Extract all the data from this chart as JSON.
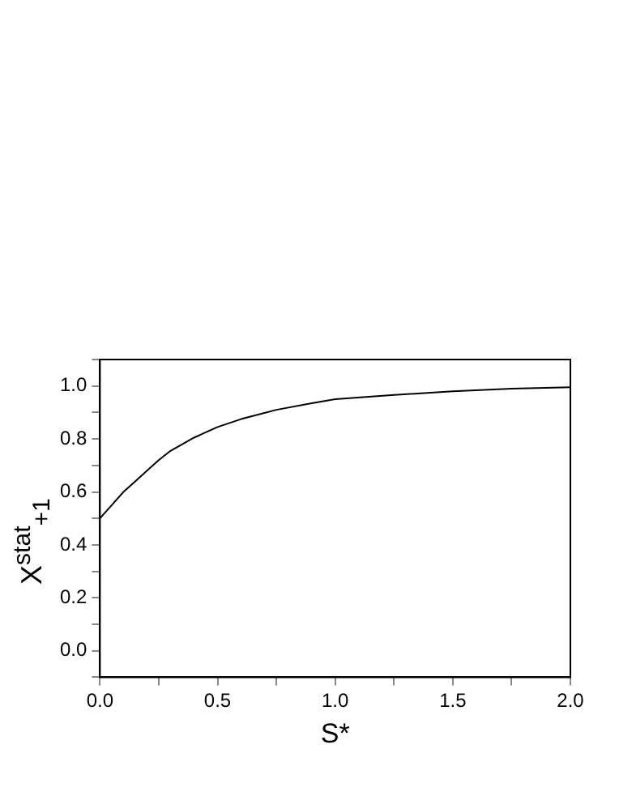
{
  "chart_data": {
    "type": "line",
    "xlabel": "S*",
    "ylabel": "X$^{stat}$$_{+1}$",
    "series": [
      {
        "color": "#000000",
        "x": [
          0,
          0.05,
          0.1,
          0.15,
          0.2,
          0.25,
          0.3,
          0.35,
          0.4,
          0.5,
          0.6,
          0.75,
          0.9,
          1.0,
          1.25,
          1.5,
          1.75,
          2.0
        ],
        "values": [
          0.5,
          0.55,
          0.6,
          0.64,
          0.68,
          0.72,
          0.755,
          0.78,
          0.805,
          0.845,
          0.875,
          0.91,
          0.935,
          0.95,
          0.966,
          0.98,
          0.99,
          0.995
        ]
      }
    ],
    "xlim": [
      0,
      2
    ],
    "xticks": [
      {
        "value": 0,
        "label": "0.0"
      },
      {
        "value": 0.25,
        "label": null
      },
      0.5,
      {
        "value": 0.75,
        "label": null
      },
      {
        "value": 1,
        "label": "1.0"
      },
      {
        "value": 1.25,
        "label": null
      },
      1.5,
      {
        "value": 1.75,
        "label": null
      },
      {
        "value": 2,
        "label": "2.0"
      }
    ],
    "ylim": [
      -0.1,
      1.1
    ],
    "yticks": [
      {
        "value": -0.1,
        "label": null
      },
      {
        "value": 0,
        "label": "0.0"
      },
      {
        "value": 0.1,
        "label": null
      },
      0.2,
      {
        "value": 0.3,
        "label": null
      },
      0.4,
      {
        "value": 0.5,
        "label": null
      },
      0.6,
      {
        "value": 0.7,
        "label": null
      },
      0.8,
      {
        "value": 0.9,
        "label": null
      },
      {
        "value": 1,
        "label": "1.0"
      },
      {
        "value": 1.1,
        "label": null
      }
    ],
    "marker": "none",
    "line_style": "solid",
    "grid": false,
    "legend": false
  }
}
